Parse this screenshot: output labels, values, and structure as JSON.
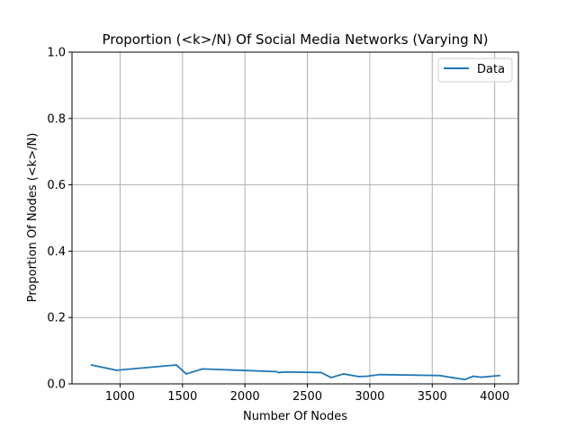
{
  "chart_data": {
    "type": "line",
    "title": "Proportion (<k>/N) Of Social Media Networks (Varying N)",
    "xlabel": "Number Of Nodes",
    "ylabel": "Proportion Of Nodes (<k>/N)",
    "xlim": [
      615,
      4190
    ],
    "ylim": [
      0.0,
      1.0
    ],
    "xticks": [
      1000,
      1500,
      2000,
      2500,
      3000,
      3500,
      4000
    ],
    "yticks": [
      0.0,
      0.2,
      0.4,
      0.6,
      0.8,
      1.0
    ],
    "xtick_labels": [
      "1000",
      "1500",
      "2000",
      "2500",
      "3000",
      "3500",
      "4000"
    ],
    "ytick_labels": [
      "0.0",
      "0.2",
      "0.4",
      "0.6",
      "0.8",
      "1.0"
    ],
    "grid": true,
    "legend_position": "top-right",
    "series": [
      {
        "name": "Data",
        "color": "#1f77b4",
        "x": [
          770,
          970,
          1450,
          1530,
          1660,
          2250,
          2270,
          2330,
          2610,
          2690,
          2790,
          2910,
          2980,
          3080,
          3560,
          3760,
          3830,
          3890,
          4040
        ],
        "y": [
          0.057,
          0.041,
          0.057,
          0.03,
          0.045,
          0.037,
          0.034,
          0.036,
          0.034,
          0.019,
          0.03,
          0.022,
          0.023,
          0.028,
          0.025,
          0.013,
          0.023,
          0.02,
          0.025
        ]
      }
    ]
  }
}
